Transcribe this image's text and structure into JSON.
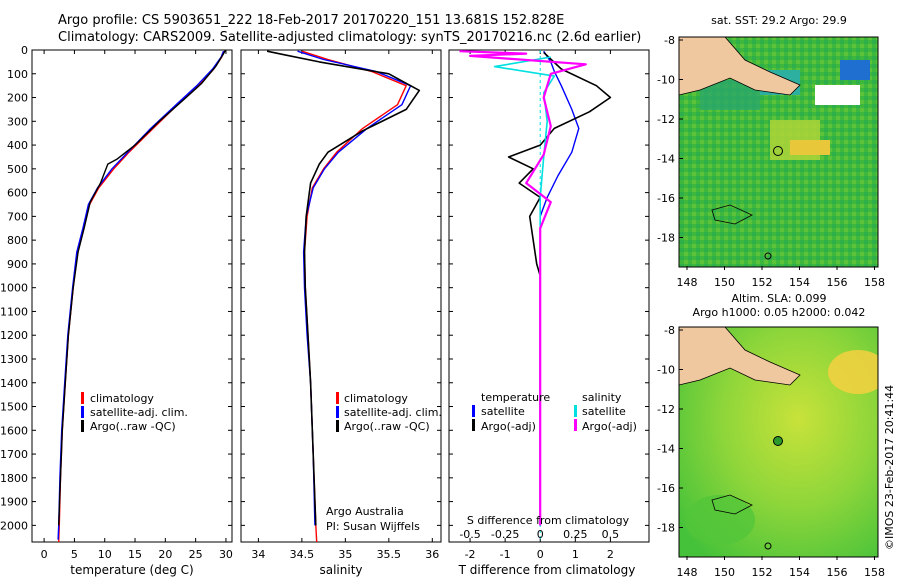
{
  "header": {
    "line1": "Argo profile: CS 5903651_222 18-Feb-2017 20170220_151 13.681S 152.828E",
    "line2": "Climatology: CARS2009. Satellite-adjusted climatology: synTS_20170216.nc (2.6d earlier)"
  },
  "colors": {
    "climatology": "#ff0000",
    "satellite": "#0000ff",
    "argo": "#000000",
    "satellite_salinity": "#00e0e0",
    "argo_salinity_diff": "#ff00ff"
  },
  "depth_ticks": [
    "0",
    "100",
    "200",
    "300",
    "400",
    "500",
    "600",
    "700",
    "800",
    "900",
    "1000",
    "1100",
    "1200",
    "1300",
    "1400",
    "1500",
    "1600",
    "1700",
    "1800",
    "1900",
    "2000"
  ],
  "chart_data": [
    {
      "type": "line",
      "id": "temperature",
      "title": "",
      "xlabel": "temperature (deg C)",
      "ylabel": "depth",
      "xlim": [
        -2,
        31
      ],
      "ylim": [
        2070,
        0
      ],
      "x_ticks": [
        0,
        5,
        10,
        15,
        20,
        25,
        30
      ],
      "legend": {
        "position": "bottom-left",
        "entries": [
          "climatology",
          "satellite-adj. clim.",
          "Argo(..raw -QC)"
        ]
      },
      "series": [
        {
          "name": "climatology",
          "points": [
            [
              29.7,
              5
            ],
            [
              29.3,
              30
            ],
            [
              28,
              80
            ],
            [
              25.5,
              150
            ],
            [
              22,
              230
            ],
            [
              18,
              330
            ],
            [
              14,
              430
            ],
            [
              11.5,
              500
            ],
            [
              9,
              580
            ],
            [
              7.5,
              650
            ],
            [
              6.5,
              750
            ],
            [
              5.5,
              850
            ],
            [
              4.8,
              1000
            ],
            [
              4,
              1200
            ],
            [
              3.5,
              1400
            ],
            [
              3,
              1600
            ],
            [
              2.7,
              1800
            ],
            [
              2.5,
              2000
            ],
            [
              2.4,
              2070
            ]
          ]
        },
        {
          "name": "satellite-adj. clim.",
          "points": [
            [
              29.6,
              5
            ],
            [
              29.2,
              30
            ],
            [
              27.8,
              80
            ],
            [
              25.2,
              150
            ],
            [
              21.8,
              230
            ],
            [
              17.6,
              330
            ],
            [
              13.8,
              430
            ],
            [
              11.2,
              500
            ],
            [
              8.8,
              580
            ],
            [
              7.3,
              650
            ],
            [
              6.4,
              750
            ],
            [
              5.4,
              850
            ],
            [
              4.7,
              1000
            ],
            [
              3.9,
              1200
            ],
            [
              3.4,
              1400
            ],
            [
              2.9,
              1600
            ],
            [
              2.6,
              1800
            ],
            [
              2.4,
              2000
            ],
            [
              2.3,
              2060
            ]
          ]
        },
        {
          "name": "Argo(..raw -QC)",
          "points": [
            [
              29.9,
              2
            ],
            [
              29.5,
              20
            ],
            [
              28.3,
              70
            ],
            [
              26,
              140
            ],
            [
              23,
              210
            ],
            [
              19,
              300
            ],
            [
              15,
              400
            ],
            [
              12,
              460
            ],
            [
              10.5,
              480
            ],
            [
              9.3,
              560
            ],
            [
              7.6,
              640
            ],
            [
              6.6,
              750
            ],
            [
              5.6,
              850
            ],
            [
              4.8,
              1000
            ],
            [
              4,
              1200
            ],
            [
              3.5,
              1400
            ],
            [
              3,
              1600
            ],
            [
              2.7,
              1800
            ],
            [
              2.4,
              2000
            ]
          ]
        }
      ]
    },
    {
      "type": "line",
      "id": "salinity",
      "title": "",
      "xlabel": "salinity",
      "ylabel": "depth",
      "xlim": [
        33.8,
        36.1
      ],
      "ylim": [
        2070,
        0
      ],
      "x_ticks": [
        34,
        34.5,
        35,
        35.5,
        36
      ],
      "x_tick_labels": [
        "34",
        "34.5",
        "35",
        "35.5",
        "36"
      ],
      "legend": {
        "position": "bottom-right",
        "entries": [
          "climatology",
          "satellite-adj. clim.",
          "Argo(..raw -QC)"
        ]
      },
      "annotation": {
        "line1": "Argo Australia",
        "line2": "PI: Susan Wijffels"
      },
      "series": [
        {
          "name": "climatology",
          "points": [
            [
              34.5,
              5
            ],
            [
              34.8,
              40
            ],
            [
              35.3,
              90
            ],
            [
              35.7,
              150
            ],
            [
              35.6,
              230
            ],
            [
              35.2,
              330
            ],
            [
              34.9,
              430
            ],
            [
              34.75,
              500
            ],
            [
              34.62,
              580
            ],
            [
              34.56,
              700
            ],
            [
              34.53,
              850
            ],
            [
              34.54,
              1000
            ],
            [
              34.57,
              1200
            ],
            [
              34.6,
              1400
            ],
            [
              34.63,
              1700
            ],
            [
              34.66,
              2000
            ],
            [
              34.67,
              2070
            ]
          ]
        },
        {
          "name": "satellite-adj. clim.",
          "points": [
            [
              34.45,
              5
            ],
            [
              34.75,
              40
            ],
            [
              35.35,
              90
            ],
            [
              35.75,
              150
            ],
            [
              35.65,
              230
            ],
            [
              35.25,
              330
            ],
            [
              34.92,
              430
            ],
            [
              34.76,
              500
            ],
            [
              34.63,
              580
            ],
            [
              34.55,
              700
            ],
            [
              34.52,
              850
            ],
            [
              34.53,
              1000
            ],
            [
              34.56,
              1200
            ],
            [
              34.6,
              1400
            ],
            [
              34.63,
              1700
            ],
            [
              34.65,
              2000
            ]
          ]
        },
        {
          "name": "Argo(..raw -QC)",
          "points": [
            [
              34.1,
              5
            ],
            [
              34.3,
              20
            ],
            [
              34.7,
              50
            ],
            [
              35.5,
              100
            ],
            [
              35.85,
              170
            ],
            [
              35.7,
              250
            ],
            [
              35.2,
              340
            ],
            [
              34.8,
              430
            ],
            [
              34.7,
              480
            ],
            [
              34.6,
              560
            ],
            [
              34.55,
              700
            ],
            [
              34.53,
              850
            ],
            [
              34.54,
              1000
            ],
            [
              34.57,
              1200
            ],
            [
              34.6,
              1400
            ],
            [
              34.63,
              1700
            ],
            [
              34.66,
              2000
            ]
          ]
        }
      ]
    },
    {
      "type": "line",
      "id": "difference",
      "title": "",
      "xlabel": "T difference from climatology",
      "xlabel_top": "S difference from climatology",
      "ylabel": "depth",
      "xlim": [
        -2.6,
        3.1
      ],
      "ylim": [
        2070,
        0
      ],
      "x_ticks": [
        -2,
        -1,
        0,
        1,
        2
      ],
      "top_ticks": [
        "-0.5",
        "-0.25",
        "0",
        "0.25",
        "0.5"
      ],
      "legend": {
        "position": "bottom",
        "temperature_title": "temperature",
        "salinity_title": "salinity",
        "entries": [
          "satellite",
          "Argo(-adj)",
          "satellite",
          "Argo(-adj)"
        ]
      },
      "series": [
        {
          "name": "temperature satellite",
          "points": [
            [
              0.1,
              5
            ],
            [
              0.3,
              50
            ],
            [
              0.4,
              90
            ],
            [
              0.6,
              150
            ],
            [
              0.9,
              250
            ],
            [
              1.1,
              330
            ],
            [
              0.9,
              430
            ],
            [
              0.5,
              530
            ],
            [
              0.2,
              620
            ],
            [
              0,
              700
            ],
            [
              0,
              2000
            ]
          ]
        },
        {
          "name": "temperature Argo(-adj)",
          "points": [
            [
              0.1,
              10
            ],
            [
              0.6,
              80
            ],
            [
              1.6,
              150
            ],
            [
              2.0,
              200
            ],
            [
              1.4,
              260
            ],
            [
              0.4,
              330
            ],
            [
              0,
              400
            ],
            [
              -0.9,
              450
            ],
            [
              -0.2,
              500
            ],
            [
              -0.6,
              560
            ],
            [
              0,
              620
            ],
            [
              -0.3,
              700
            ],
            [
              -0.2,
              800
            ],
            [
              -0.1,
              900
            ],
            [
              0,
              950
            ],
            [
              0,
              2000
            ]
          ]
        },
        {
          "name": "salinity satellite",
          "points": [
            [
              0.3,
              30
            ],
            [
              -1.3,
              70
            ],
            [
              0.4,
              110
            ],
            [
              0.1,
              180
            ],
            [
              0.2,
              300
            ],
            [
              0.1,
              450
            ],
            [
              0,
              620
            ],
            [
              0,
              1200
            ],
            [
              0,
              2000
            ]
          ]
        },
        {
          "name": "salinity Argo(-adj)",
          "points": [
            [
              -2.3,
              5
            ],
            [
              -0.4,
              15
            ],
            [
              -2.0,
              25
            ],
            [
              1.3,
              60
            ],
            [
              0.3,
              100
            ],
            [
              0.1,
              200
            ],
            [
              0.3,
              320
            ],
            [
              0.1,
              440
            ],
            [
              -0.4,
              560
            ],
            [
              0.3,
              640
            ],
            [
              0,
              750
            ],
            [
              0,
              2000
            ]
          ]
        }
      ]
    }
  ],
  "maps": {
    "sst": {
      "title": "sat. SST: 29.2  Argo: 29.9",
      "lat_labels": [
        "-8",
        "-10",
        "-12",
        "-14",
        "-16",
        "-18"
      ],
      "lon_labels": [
        "148",
        "150",
        "152",
        "154",
        "156",
        "158"
      ]
    },
    "sla": {
      "title1": "Altim. SLA: 0.099",
      "title2": "Argo h1000: 0.05 h2000: 0.042",
      "lat_labels": [
        "-8",
        "-10",
        "-12",
        "-14",
        "-16",
        "-18"
      ],
      "lon_labels": [
        "148",
        "150",
        "152",
        "154",
        "156",
        "158"
      ]
    }
  },
  "footer": {
    "copyright": "©IMOS 23-Feb-2017 20:41:44"
  }
}
